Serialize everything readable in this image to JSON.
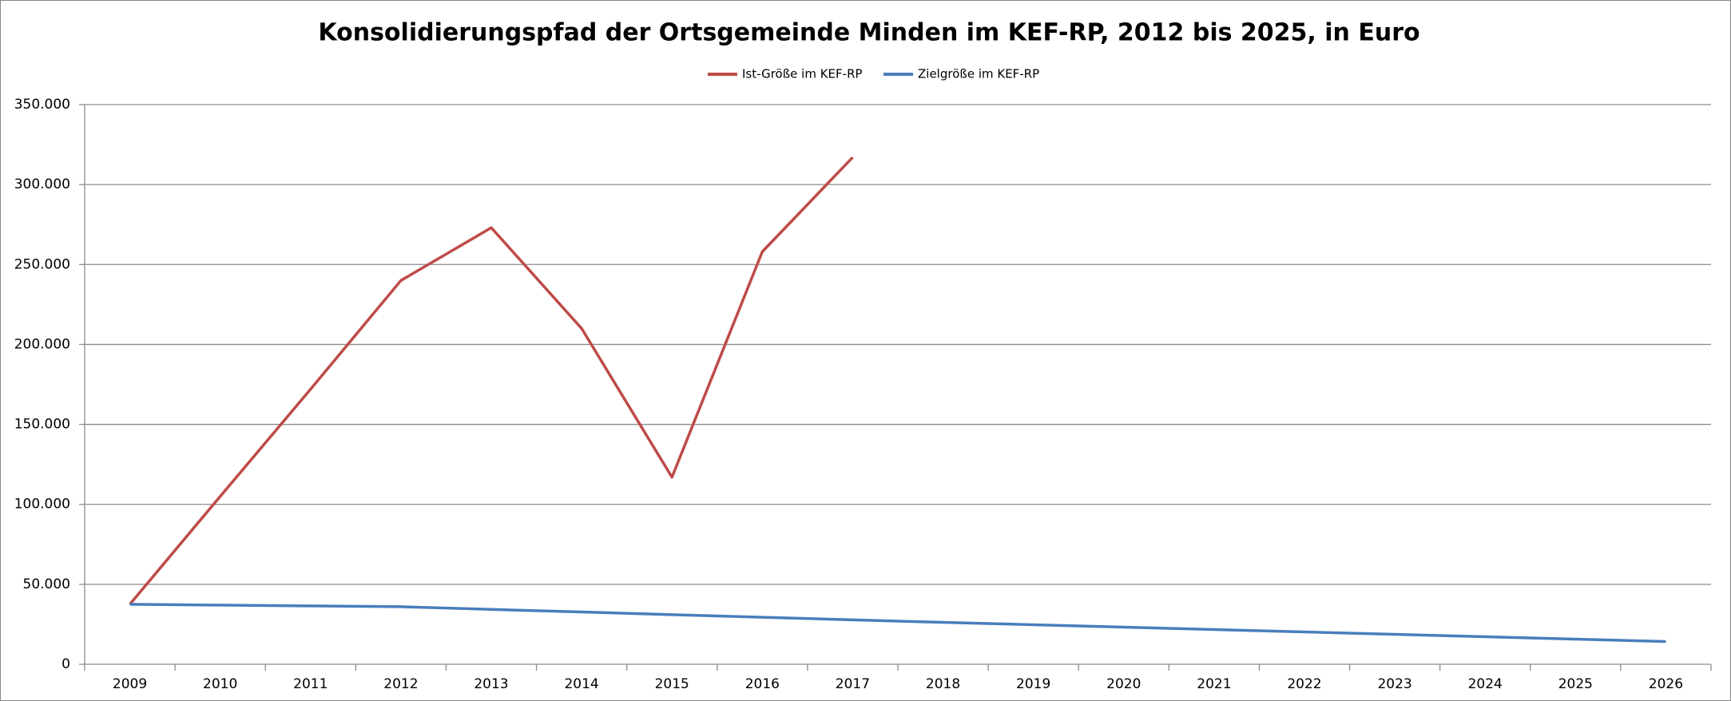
{
  "chart_data": {
    "type": "line",
    "title": "Konsolidierungspfad der Ortsgemeinde Minden im KEF-RP, 2012 bis 2025, in Euro",
    "categories": [
      "2009",
      "2010",
      "2011",
      "2012",
      "2013",
      "2014",
      "2015",
      "2016",
      "2017",
      "2018",
      "2019",
      "2020",
      "2021",
      "2022",
      "2023",
      "2024",
      "2025",
      "2026"
    ],
    "series": [
      {
        "name": "Ist-Größe im KEF-RP",
        "color": "#be4b48",
        "values": [
          37500,
          105000,
          172000,
          240000,
          273000,
          210000,
          117000,
          258000,
          317000,
          null,
          null,
          null,
          null,
          null,
          null,
          null,
          null,
          null
        ]
      },
      {
        "name": "Zielgröße im KEF-RP",
        "color": "#4a7ebb",
        "values": [
          37500,
          37000,
          36500,
          36000,
          34300,
          32700,
          31000,
          29400,
          27800,
          26200,
          24700,
          23200,
          21700,
          20200,
          18700,
          17200,
          15700,
          14200
        ]
      }
    ],
    "ylim": [
      0,
      350000
    ],
    "yticks": [
      0,
      {
        "value": 50000,
        "label": "50.000"
      },
      {
        "value": 100000,
        "label": "100.000"
      },
      {
        "value": 150000,
        "label": "150.000"
      },
      {
        "value": 200000,
        "label": "200.000"
      },
      {
        "value": 250000,
        "label": "250.000"
      },
      {
        "value": 300000,
        "label": "300.000"
      },
      {
        "value": 350000,
        "label": "350.000"
      }
    ],
    "grid": true,
    "legend": "top"
  }
}
